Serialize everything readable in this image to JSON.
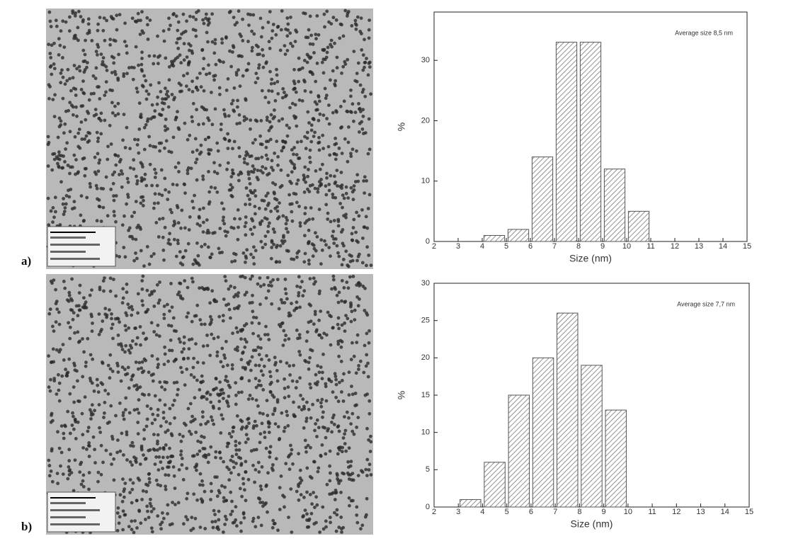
{
  "chart_data": [
    {
      "type": "histogram",
      "panel": "a)",
      "annotation": "Average size 8,5 nm",
      "xlabel": "Size (nm)",
      "ylabel": "%",
      "bins": [
        4,
        5,
        6,
        7,
        8,
        9,
        10,
        11
      ],
      "values": [
        1,
        2,
        14,
        33,
        33,
        12,
        5
      ],
      "color": "#555555",
      "xlim": [
        2,
        15
      ],
      "xticks": [
        2,
        3,
        4,
        5,
        6,
        7,
        8,
        9,
        10,
        11,
        12,
        13,
        14,
        15
      ],
      "ylim": [
        0,
        38
      ],
      "yticks": [
        0,
        10,
        20,
        30
      ]
    },
    {
      "type": "histogram",
      "panel": "b)",
      "annotation": "Average size 7,7 nm",
      "xlabel": "Size (nm)",
      "ylabel": "%",
      "bins": [
        3,
        4,
        5,
        6,
        7,
        8,
        9,
        10
      ],
      "values": [
        1,
        6,
        15,
        20,
        26,
        19,
        13
      ],
      "color": "#555555",
      "xlim": [
        2,
        15
      ],
      "xticks": [
        2,
        3,
        4,
        5,
        6,
        7,
        8,
        9,
        10,
        11,
        12,
        13,
        14,
        15
      ],
      "ylim": [
        0,
        30
      ],
      "yticks": [
        0,
        5,
        10,
        15,
        20,
        25,
        30
      ]
    }
  ]
}
